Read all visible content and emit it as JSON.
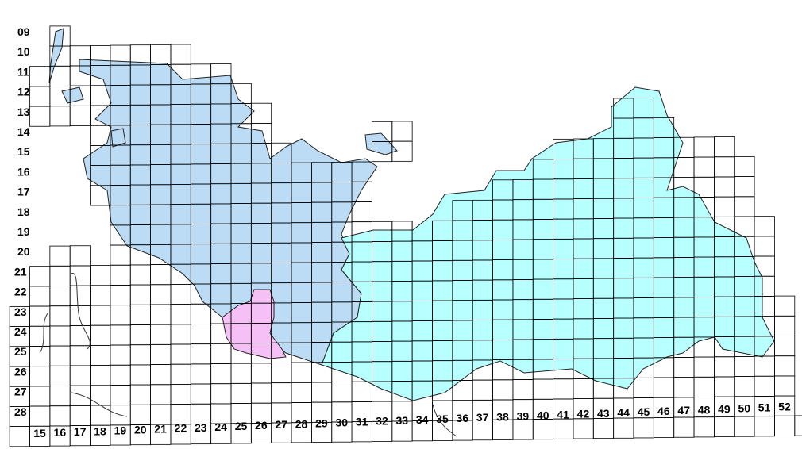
{
  "map": {
    "row_labels": [
      "09",
      "10",
      "11",
      "12",
      "13",
      "14",
      "15",
      "16",
      "17",
      "18",
      "19",
      "20",
      "21",
      "22",
      "23",
      "24",
      "25",
      "26",
      "27",
      "28"
    ],
    "column_labels": [
      "15",
      "16",
      "17",
      "18",
      "19",
      "20",
      "21",
      "22",
      "23",
      "24",
      "25",
      "26",
      "27",
      "28",
      "29",
      "30",
      "31",
      "32",
      "33",
      "34",
      "35",
      "36",
      "37",
      "38",
      "39",
      "40",
      "41",
      "42",
      "43",
      "44",
      "45",
      "46",
      "47",
      "48",
      "49",
      "50",
      "51",
      "52"
    ],
    "regions": [
      {
        "id": "west-region",
        "color": "#bcdcf5"
      },
      {
        "id": "east-region",
        "color": "#b8ffff"
      },
      {
        "id": "enclave-region",
        "color": "#f5c0f5"
      }
    ],
    "grid_color": "#000000",
    "land_color": "#ffffff"
  }
}
